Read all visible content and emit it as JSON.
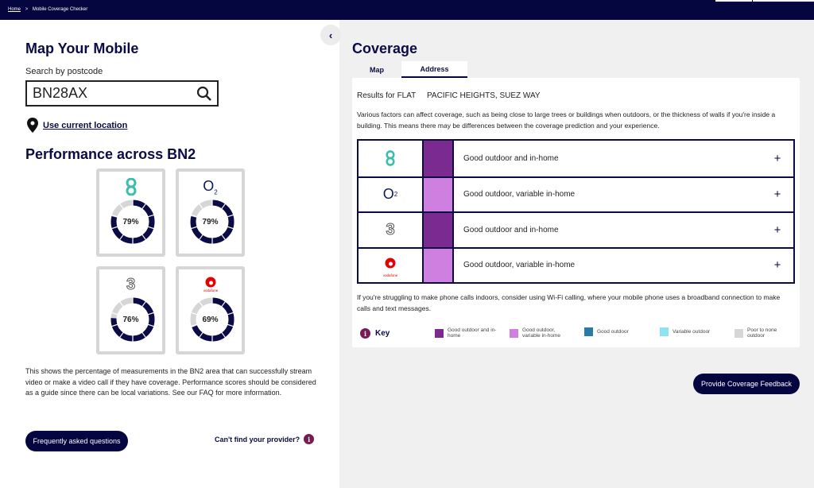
{
  "breadcrumb": {
    "home": "Home",
    "separator": ">",
    "current": "Mobile Coverage Checker"
  },
  "left": {
    "title": "Map Your Mobile",
    "search_label": "Search by postcode",
    "search_value": "BN28AX",
    "use_location": "Use current location",
    "performance_title": "Performance across BN2",
    "providers": [
      {
        "name": "EE",
        "percent_label": "79%",
        "percent": 79
      },
      {
        "name": "O2",
        "percent_label": "79%",
        "percent": 79
      },
      {
        "name": "Three",
        "percent_label": "76%",
        "percent": 76
      },
      {
        "name": "Vodafone",
        "percent_label": "69%",
        "percent": 69
      }
    ],
    "description": "This shows the percentage of measurements in the BN2 area that can successfully stream video or make a video call if they have coverage. Performance scores should be considered as a guide since there can be local variations. See our FAQ for more information.",
    "faq_button": "Frequently asked questions",
    "cant_find": "Can't find your provider?"
  },
  "right": {
    "title": "Coverage",
    "tabs": [
      {
        "label": "Map"
      },
      {
        "label": "Address"
      }
    ],
    "results": "Results for FLAT     PACIFIC HEIGHTS, SUEZ WAY",
    "factors_note": "Various factors can affect coverage, such as being close to large trees or buildings when outdoors, or the thickness of walls if you're inside a building. This means there may be differences between the coverage prediction and your experience.",
    "rows": [
      {
        "provider": "EE",
        "status": "Good outdoor and in-home",
        "color": "#7b2a90"
      },
      {
        "provider": "O2",
        "status": "Good outdoor, variable in-home",
        "color": "#cf7fe0"
      },
      {
        "provider": "Three",
        "status": "Good outdoor and in-home",
        "color": "#7b2a90"
      },
      {
        "provider": "Vodafone",
        "status": "Good outdoor, variable in-home",
        "color": "#cf7fe0"
      }
    ],
    "vodafone_wordmark": "vodafone",
    "wifi_note": "If you're struggling to make phone calls indoors, consider using Wi-Fi calling, where your mobile phone uses a broadband connection to make calls and text messages.",
    "key_label": "Key",
    "key": [
      {
        "label": "Good outdoor and in-home",
        "color": "#7b2a90"
      },
      {
        "label": "Good outdoor, variable in-home",
        "color": "#cf7fe0"
      },
      {
        "label": "Good outdoor",
        "color": "#2a7aa8"
      },
      {
        "label": "Variable outdoor",
        "color": "#8de4f0"
      },
      {
        "label": "Poor to none outdoor",
        "color": "#d6d6d6"
      }
    ],
    "feedback_button": "Provide Coverage Feedback"
  }
}
